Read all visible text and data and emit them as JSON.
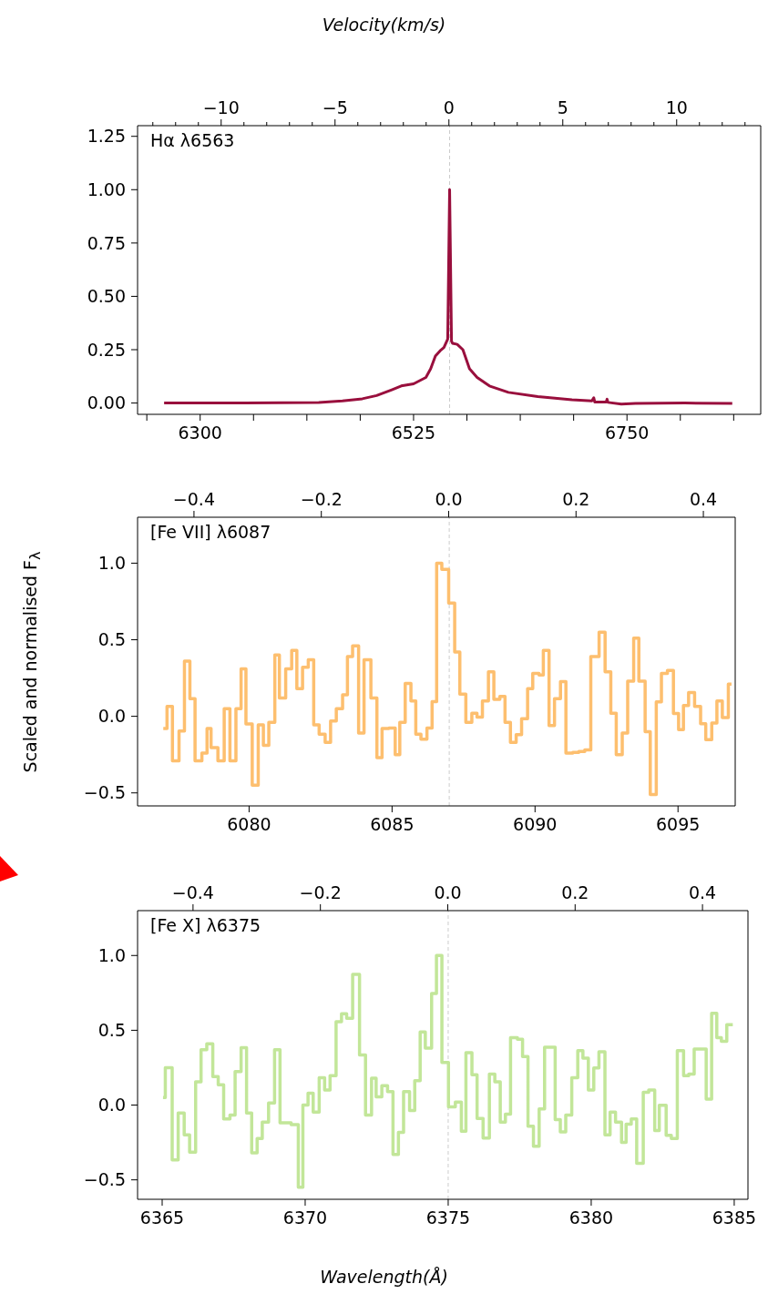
{
  "chart_data": [
    {
      "type": "line",
      "title": "Hα λ6563",
      "x2label": "Velocity(km/s)",
      "x": [
        6262,
        6347,
        6425,
        6450,
        6471,
        6486,
        6502,
        6512,
        6525,
        6538,
        6543,
        6548,
        6553,
        6557,
        6561,
        6563,
        6565,
        6566,
        6571,
        6577,
        6584,
        6592,
        6605,
        6625,
        6656,
        6692,
        6713,
        6715,
        6716,
        6728,
        6729,
        6730,
        6744,
        6759,
        6811,
        6861
      ],
      "series": [
        {
          "color": "#990f3d",
          "values": [
            0,
            0,
            0.002,
            0.01,
            0.02,
            0.035,
            0.062,
            0.08,
            0.09,
            0.12,
            0.16,
            0.22,
            0.245,
            0.26,
            0.3,
            1.0,
            0.29,
            0.28,
            0.275,
            0.25,
            0.16,
            0.12,
            0.08,
            0.05,
            0.03,
            0.015,
            0.01,
            0.025,
            0.005,
            0.005,
            0.018,
            0.003,
            -0.005,
            -0.002,
            0,
            -0.002
          ]
        }
      ],
      "xlim": [
        6234,
        6891
      ],
      "xticks": [
        {
          "value": 6243.75,
          "label": null
        },
        6300,
        {
          "value": 6356.25,
          "label": null
        },
        {
          "value": 6412.5,
          "label": null
        },
        {
          "value": 6468.75,
          "label": null
        },
        6525,
        {
          "value": 6581.25,
          "label": null
        },
        {
          "value": 6637.5,
          "label": null
        },
        {
          "value": 6693.75,
          "label": null
        },
        6750,
        {
          "value": 6806.25,
          "label": null
        },
        {
          "value": 6862.5,
          "label": null
        }
      ],
      "x2lim": [
        -13.67,
        13.69
      ],
      "x2ticks": [
        {
          "value": -13,
          "label": null
        },
        {
          "value": -12,
          "label": null
        },
        {
          "value": -11,
          "label": null
        },
        {
          "value": -10,
          "label": "−10"
        },
        {
          "value": -9,
          "label": null
        },
        {
          "value": -8,
          "label": null
        },
        {
          "value": -7,
          "label": null
        },
        {
          "value": -6,
          "label": null
        },
        {
          "value": -5,
          "label": "−5"
        },
        {
          "value": -4,
          "label": null
        },
        {
          "value": -3,
          "label": null
        },
        {
          "value": -2,
          "label": null
        },
        {
          "value": -1,
          "label": null
        },
        0,
        {
          "value": 1,
          "label": null
        },
        {
          "value": 2,
          "label": null
        },
        {
          "value": 3,
          "label": null
        },
        {
          "value": 4,
          "label": null
        },
        5,
        {
          "value": 6,
          "label": null
        },
        {
          "value": 7,
          "label": null
        },
        {
          "value": 8,
          "label": null
        },
        {
          "value": 9,
          "label": null
        },
        10,
        {
          "value": 11,
          "label": null
        },
        {
          "value": 12,
          "label": null
        },
        {
          "value": 13,
          "label": null
        }
      ],
      "ylim": [
        -0.053,
        1.3
      ],
      "yticks": [
        {
          "value": 0,
          "label": "0.00"
        },
        {
          "value": 0.25,
          "label": "0.25"
        },
        {
          "value": 0.5,
          "label": "0.50"
        },
        {
          "value": 0.75,
          "label": "0.75"
        },
        {
          "value": 1,
          "label": "1.00"
        },
        {
          "value": 1.25,
          "label": "1.25"
        }
      ],
      "ref_lines": [
        {
          "axis": "x",
          "value": 6563,
          "color": "#cccccc",
          "line_style": "dashed"
        }
      ],
      "grid": false,
      "legend": false,
      "line_style": "solid",
      "marker": "none"
    },
    {
      "type": "step",
      "title": "[Fe VII] λ6087",
      "ylabel": "Scaled and normalised F$_{λ}$",
      "x": [
        6077.0,
        6077.13,
        6077.32,
        6077.55,
        6077.74,
        6077.93,
        6078.11,
        6078.35,
        6078.53,
        6078.67,
        6078.91,
        6079.13,
        6079.33,
        6079.54,
        6079.72,
        6079.89,
        6080.11,
        6080.32,
        6080.5,
        6080.69,
        6080.9,
        6081.06,
        6081.28,
        6081.49,
        6081.67,
        6081.87,
        6082.07,
        6082.26,
        6082.45,
        6082.66,
        6082.85,
        6083.05,
        6083.27,
        6083.44,
        6083.62,
        6083.83,
        6084.02,
        6084.26,
        6084.47,
        6084.65,
        6084.89,
        6085.11,
        6085.27,
        6085.46,
        6085.66,
        6085.83,
        6086.01,
        6086.22,
        6086.4,
        6086.56,
        6086.74,
        6086.98,
        6087.19,
        6087.37,
        6087.58,
        6087.79,
        6087.97,
        6088.16,
        6088.37,
        6088.56,
        6088.77,
        6088.95,
        6089.14,
        6089.34,
        6089.53,
        6089.74,
        6089.92,
        6090.14,
        6090.29,
        6090.49,
        6090.68,
        6090.89,
        6091.08,
        6091.32,
        6091.53,
        6091.74,
        6091.95,
        6092.24,
        6092.45,
        6092.65,
        6092.84,
        6093.05,
        6093.24,
        6093.45,
        6093.63,
        6093.85,
        6094.03,
        6094.24,
        6094.42,
        6094.63,
        6094.84,
        6095.02,
        6095.19,
        6095.37,
        6095.58,
        6095.79,
        6095.97,
        6096.18,
        6096.36,
        6096.55,
        6096.76,
        6096.87
      ],
      "series": [
        {
          "color": "#fdbf6f",
          "values": [
            -0.08,
            0.064,
            -0.29,
            -0.096,
            0.36,
            0.115,
            -0.29,
            -0.24,
            -0.08,
            -0.205,
            -0.29,
            0.05,
            -0.29,
            0.05,
            0.31,
            -0.05,
            -0.45,
            -0.056,
            -0.19,
            -0.04,
            0.4,
            0.12,
            0.31,
            0.43,
            0.18,
            0.32,
            0.37,
            -0.056,
            -0.116,
            -0.17,
            -0.03,
            0.05,
            0.14,
            0.39,
            0.46,
            -0.11,
            0.37,
            0.12,
            -0.27,
            -0.08,
            -0.076,
            -0.25,
            -0.04,
            0.215,
            0.1,
            -0.116,
            -0.15,
            -0.076,
            0.096,
            1.0,
            0.96,
            0.74,
            0.42,
            0.145,
            -0.04,
            0.02,
            -0.005,
            0.1,
            0.29,
            0.11,
            0.13,
            -0.04,
            -0.17,
            -0.12,
            -0.015,
            0.18,
            0.28,
            0.27,
            0.43,
            -0.06,
            0.115,
            0.226,
            -0.24,
            -0.235,
            -0.23,
            -0.22,
            0.39,
            0.55,
            0.29,
            0.02,
            -0.25,
            -0.11,
            0.23,
            0.51,
            0.23,
            -0.1,
            -0.51,
            0.095,
            0.28,
            0.3,
            0.018,
            -0.087,
            0.07,
            0.155,
            0.065,
            -0.048,
            -0.153,
            -0.044,
            0.1,
            -0.008,
            0.21,
            0.21
          ]
        }
      ],
      "xlim": [
        6076.1,
        6097.0
      ],
      "xticks": [
        6080,
        6085,
        6090,
        6095
      ],
      "x2lim": [
        -0.4886,
        0.45
      ],
      "x2ticks": [
        {
          "value": -0.4,
          "label": "−0.4"
        },
        {
          "value": -0.2,
          "label": "−0.2"
        },
        {
          "value": 0,
          "label": "0.0"
        },
        {
          "value": 0.2,
          "label": "0.2"
        },
        {
          "value": 0.4,
          "label": "0.4"
        }
      ],
      "ylim": [
        -0.585,
        1.3
      ],
      "yticks": [
        {
          "value": -0.5,
          "label": "−0.5"
        },
        {
          "value": 0,
          "label": "0.0"
        },
        {
          "value": 0.5,
          "label": "0.5"
        },
        {
          "value": 1,
          "label": "1.0"
        }
      ],
      "ref_lines": [
        {
          "axis": "x",
          "value": 6087,
          "color": "#cccccc",
          "line_style": "dashed"
        }
      ],
      "grid": false,
      "legend": false,
      "line_style": "solid",
      "marker": "none"
    },
    {
      "type": "step",
      "title": "[Fe X] λ6375",
      "xlabel": "Wavelength(Å)",
      "x": [
        6365.03,
        6365.11,
        6365.35,
        6365.56,
        6365.77,
        6365.96,
        6366.17,
        6366.36,
        6366.56,
        6366.77,
        6366.96,
        6367.15,
        6367.37,
        6367.55,
        6367.76,
        6367.95,
        6368.13,
        6368.32,
        6368.5,
        6368.72,
        6368.93,
        6369.12,
        6369.51,
        6369.76,
        6369.92,
        6370.1,
        6370.28,
        6370.49,
        6370.68,
        6370.87,
        6371.08,
        6371.27,
        6371.45,
        6371.66,
        6371.9,
        6372.11,
        6372.32,
        6372.48,
        6372.68,
        6372.88,
        6373.07,
        6373.26,
        6373.44,
        6373.65,
        6373.83,
        6374.02,
        6374.2,
        6374.42,
        6374.59,
        6374.78,
        6375.01,
        6375.25,
        6375.46,
        6375.62,
        6375.83,
        6376.01,
        6376.22,
        6376.44,
        6376.63,
        6376.82,
        6377.0,
        6377.18,
        6377.42,
        6377.6,
        6377.79,
        6377.98,
        6378.18,
        6378.37,
        6378.74,
        6378.92,
        6379.11,
        6379.32,
        6379.53,
        6379.71,
        6379.9,
        6380.09,
        6380.27,
        6380.48,
        6380.66,
        6380.85,
        6381.06,
        6381.22,
        6381.4,
        6381.59,
        6381.82,
        6382.01,
        6382.22,
        6382.38,
        6382.62,
        6382.8,
        6383.01,
        6383.23,
        6383.41,
        6383.6,
        6384.02,
        6384.21,
        6384.39,
        6384.55,
        6384.74,
        6384.95
      ],
      "series": [
        {
          "color": "#c2e699",
          "values": [
            0.05,
            0.25,
            -0.366,
            -0.053,
            -0.2,
            -0.315,
            0.156,
            0.37,
            0.41,
            0.19,
            0.136,
            -0.093,
            -0.067,
            0.224,
            0.384,
            -0.053,
            -0.32,
            -0.224,
            -0.114,
            0.014,
            0.37,
            -0.118,
            -0.13,
            -0.55,
            0,
            0.08,
            -0.047,
            0.183,
            0.1,
            0.197,
            0.557,
            0.61,
            0.58,
            0.874,
            0.335,
            -0.067,
            0.18,
            0.055,
            0.13,
            0.09,
            -0.33,
            -0.183,
            0.09,
            -0.037,
            0.163,
            0.488,
            0.38,
            0.746,
            1.0,
            0.285,
            -0.012,
            0.02,
            -0.175,
            0.35,
            0.203,
            -0.09,
            -0.22,
            0.207,
            0.156,
            -0.114,
            -0.06,
            0.45,
            0.44,
            0.325,
            -0.142,
            -0.276,
            -0.026,
            0.386,
            -0.098,
            -0.18,
            -0.067,
            0.183,
            0.364,
            0.313,
            0.1,
            0.248,
            0.356,
            -0.2,
            -0.047,
            -0.114,
            -0.25,
            -0.128,
            -0.093,
            -0.39,
            0.085,
            0.1,
            -0.17,
            -0.002,
            -0.203,
            -0.224,
            0.364,
            0.197,
            0.207,
            0.374,
            0.04,
            0.614,
            0.45,
            0.427,
            0.537,
            0.537
          ]
        }
      ],
      "xlim": [
        6364.14,
        6385.48
      ],
      "xticks": [
        6365,
        6370,
        6375,
        6380,
        6385
      ],
      "x2lim": [
        -0.4871,
        0.4714
      ],
      "x2ticks": [
        {
          "value": -0.4,
          "label": "−0.4"
        },
        {
          "value": -0.2,
          "label": "−0.2"
        },
        {
          "value": 0,
          "label": "0.0"
        },
        {
          "value": 0.2,
          "label": "0.2"
        },
        {
          "value": 0.4,
          "label": "0.4"
        }
      ],
      "ylim": [
        -0.63,
        1.3
      ],
      "yticks": [
        {
          "value": -0.5,
          "label": "−0.5"
        },
        {
          "value": 0,
          "label": "0.0"
        },
        {
          "value": 0.5,
          "label": "0.5"
        },
        {
          "value": 1,
          "label": "1.0"
        }
      ],
      "ref_lines": [
        {
          "axis": "x",
          "value": 6375,
          "color": "#cccccc",
          "line_style": "dashed"
        }
      ],
      "grid": false,
      "legend": false,
      "line_style": "solid",
      "marker": "none"
    }
  ]
}
